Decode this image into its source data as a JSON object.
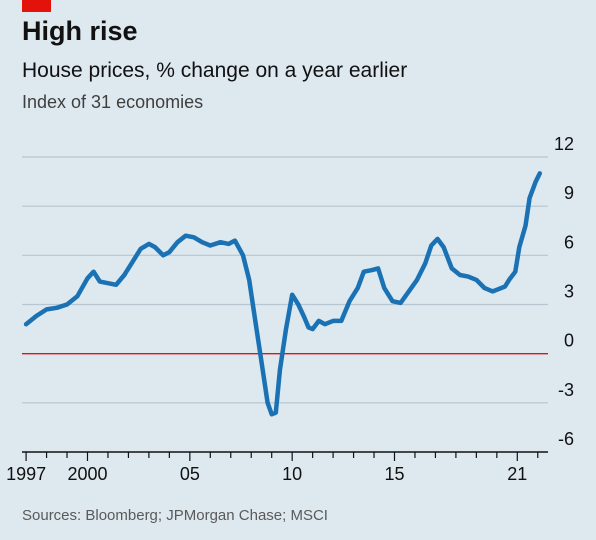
{
  "header": {
    "title": "High rise",
    "subtitle": "House prices, % change on a year earlier",
    "subtitle2": "Index of 31 economies"
  },
  "footer": {
    "source": "Sources: Bloomberg; JPMorgan Chase; MSCI"
  },
  "colors": {
    "background": "#dde8ef",
    "line": "#1a72b4",
    "zero_line": "#e3120b",
    "grid": "#b7c6d0",
    "axis": "#111111",
    "brand_flag": "#e3120b"
  },
  "chart_data": {
    "type": "line",
    "title": "High rise",
    "subtitle": "House prices, % change on a year earlier",
    "xlabel": "",
    "ylabel": "",
    "xlim": [
      1996.8,
      2022.5
    ],
    "ylim": [
      -6,
      12
    ],
    "grid": true,
    "y_axis_side": "right",
    "y_ticks": [
      12,
      9,
      6,
      3,
      0,
      -3,
      -6
    ],
    "y_tick_labels": [
      "12",
      "9",
      "6",
      "3",
      "0",
      "-3",
      "-6"
    ],
    "x_ticks": [
      1997,
      2000,
      2005,
      2010,
      2015,
      2021
    ],
    "x_tick_labels": [
      "1997",
      "2000",
      "05",
      "10",
      "15",
      "21"
    ],
    "series": [
      {
        "values": [
          [
            1997.0,
            1.8
          ],
          [
            1997.5,
            2.3
          ],
          [
            1998.0,
            2.7
          ],
          [
            1998.5,
            2.8
          ],
          [
            1999.0,
            3.0
          ],
          [
            1999.5,
            3.5
          ],
          [
            2000.0,
            4.6
          ],
          [
            2000.3,
            5.0
          ],
          [
            2000.6,
            4.4
          ],
          [
            2001.0,
            4.3
          ],
          [
            2001.4,
            4.2
          ],
          [
            2001.8,
            4.8
          ],
          [
            2002.2,
            5.6
          ],
          [
            2002.6,
            6.4
          ],
          [
            2003.0,
            6.7
          ],
          [
            2003.3,
            6.5
          ],
          [
            2003.7,
            6.0
          ],
          [
            2004.0,
            6.2
          ],
          [
            2004.4,
            6.8
          ],
          [
            2004.8,
            7.2
          ],
          [
            2005.2,
            7.1
          ],
          [
            2005.6,
            6.8
          ],
          [
            2006.0,
            6.6
          ],
          [
            2006.5,
            6.8
          ],
          [
            2006.9,
            6.7
          ],
          [
            2007.2,
            6.9
          ],
          [
            2007.6,
            6.0
          ],
          [
            2007.9,
            4.5
          ],
          [
            2008.2,
            2.0
          ],
          [
            2008.5,
            -0.5
          ],
          [
            2008.8,
            -3.0
          ],
          [
            2009.0,
            -3.7
          ],
          [
            2009.2,
            -3.6
          ],
          [
            2009.4,
            -1.0
          ],
          [
            2009.7,
            1.5
          ],
          [
            2010.0,
            3.6
          ],
          [
            2010.3,
            3.0
          ],
          [
            2010.6,
            2.2
          ],
          [
            2010.8,
            1.6
          ],
          [
            2011.0,
            1.5
          ],
          [
            2011.3,
            2.0
          ],
          [
            2011.6,
            1.8
          ],
          [
            2012.0,
            2.0
          ],
          [
            2012.4,
            2.0
          ],
          [
            2012.8,
            3.2
          ],
          [
            2013.2,
            4.0
          ],
          [
            2013.5,
            5.0
          ],
          [
            2013.9,
            5.1
          ],
          [
            2014.2,
            5.2
          ],
          [
            2014.5,
            4.0
          ],
          [
            2014.9,
            3.2
          ],
          [
            2015.3,
            3.1
          ],
          [
            2015.7,
            3.8
          ],
          [
            2016.1,
            4.5
          ],
          [
            2016.5,
            5.5
          ],
          [
            2016.8,
            6.6
          ],
          [
            2017.1,
            7.0
          ],
          [
            2017.4,
            6.5
          ],
          [
            2017.8,
            5.2
          ],
          [
            2018.2,
            4.8
          ],
          [
            2018.6,
            4.7
          ],
          [
            2019.0,
            4.5
          ],
          [
            2019.4,
            4.0
          ],
          [
            2019.8,
            3.8
          ],
          [
            2020.0,
            3.9
          ],
          [
            2020.4,
            4.1
          ],
          [
            2020.6,
            4.5
          ],
          [
            2020.9,
            5.0
          ],
          [
            2021.1,
            6.5
          ],
          [
            2021.4,
            7.8
          ],
          [
            2021.6,
            9.5
          ],
          [
            2021.9,
            10.5
          ],
          [
            2022.1,
            11.0
          ]
        ]
      }
    ]
  }
}
